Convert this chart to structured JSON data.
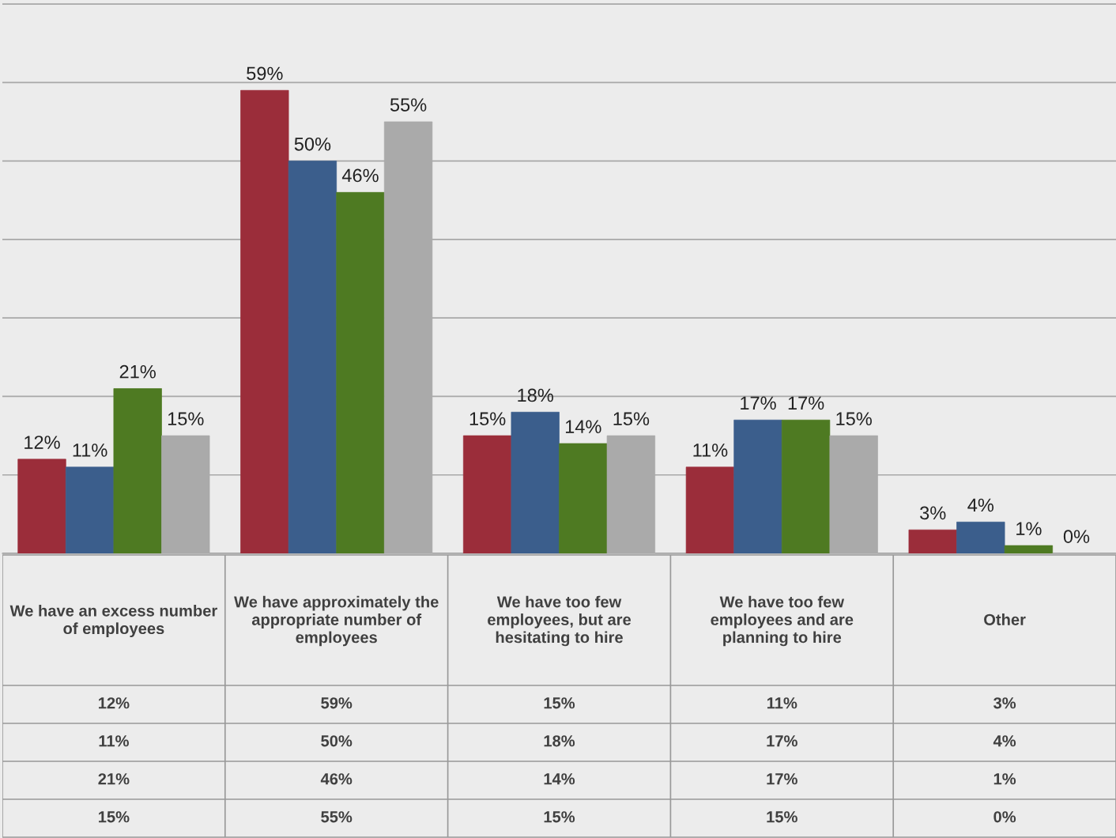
{
  "chart_data": {
    "type": "bar",
    "categories": [
      "We have an excess number of employees",
      "We have approximately the appropriate number of employees",
      "We have too few employees, but are hesitating to hire",
      "We have too few employees and are planning to hire",
      "Other"
    ],
    "series": [
      {
        "color": "#9b2d3a",
        "values": [
          12,
          59,
          15,
          11,
          3
        ],
        "value_labels": [
          "12%",
          "59%",
          "15%",
          "11%",
          "3%"
        ]
      },
      {
        "color": "#3b5e8c",
        "values": [
          11,
          50,
          18,
          17,
          4
        ],
        "value_labels": [
          "11%",
          "50%",
          "18%",
          "17%",
          "4%"
        ]
      },
      {
        "color": "#4e7a22",
        "values": [
          21,
          46,
          14,
          17,
          1
        ],
        "value_labels": [
          "21%",
          "46%",
          "14%",
          "17%",
          "1%"
        ]
      },
      {
        "color": "#aaaaaa",
        "values": [
          15,
          55,
          15,
          15,
          0
        ],
        "value_labels": [
          "15%",
          "55%",
          "15%",
          "15%",
          "0%"
        ]
      }
    ],
    "grid": "y",
    "legend": false
  }
}
